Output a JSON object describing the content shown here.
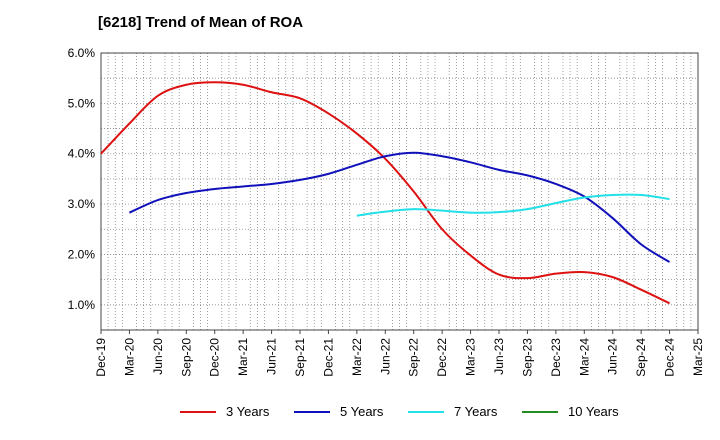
{
  "chart_data": {
    "type": "line",
    "title": "[6218]  Trend of Mean of ROA",
    "xlabel": "",
    "ylabel": "",
    "ylim": [
      0.5,
      6.0
    ],
    "yticks": [
      1.0,
      2.0,
      3.0,
      4.0,
      5.0,
      6.0
    ],
    "ytick_labels": [
      "1.0%",
      "2.0%",
      "3.0%",
      "4.0%",
      "5.0%",
      "6.0%"
    ],
    "x_labels": [
      "Dec-19",
      "Mar-20",
      "Jun-20",
      "Sep-20",
      "Dec-20",
      "Mar-21",
      "Jun-21",
      "Sep-21",
      "Dec-21",
      "Mar-22",
      "Jun-22",
      "Sep-22",
      "Dec-22",
      "Mar-23",
      "Jun-23",
      "Sep-23",
      "Dec-23",
      "Mar-24",
      "Jun-24",
      "Sep-24",
      "Dec-24",
      "Mar-25"
    ],
    "grid": true,
    "legend_position": "bottom",
    "series": [
      {
        "name": "3 Years",
        "color": "#dd1111",
        "start_index": 0,
        "values": [
          4.0,
          4.6,
          5.15,
          5.37,
          5.42,
          5.37,
          5.22,
          5.1,
          4.8,
          4.4,
          3.9,
          3.25,
          2.5,
          1.98,
          1.6,
          1.53,
          1.62,
          1.65,
          1.55,
          1.3,
          1.03
        ]
      },
      {
        "name": "5 Years",
        "color": "#1111bb",
        "start_index": 1,
        "values": [
          2.83,
          3.08,
          3.22,
          3.3,
          3.35,
          3.4,
          3.48,
          3.6,
          3.78,
          3.95,
          4.02,
          3.95,
          3.83,
          3.68,
          3.57,
          3.4,
          3.15,
          2.72,
          2.2,
          1.85
        ]
      },
      {
        "name": "7 Years",
        "color": "#22e0e8",
        "start_index": 9,
        "values": [
          2.77,
          2.85,
          2.9,
          2.87,
          2.83,
          2.84,
          2.9,
          3.02,
          3.13,
          3.18,
          3.18,
          3.1
        ]
      },
      {
        "name": "10 Years",
        "color": "#228b22",
        "start_index": 0,
        "values": []
      }
    ]
  }
}
